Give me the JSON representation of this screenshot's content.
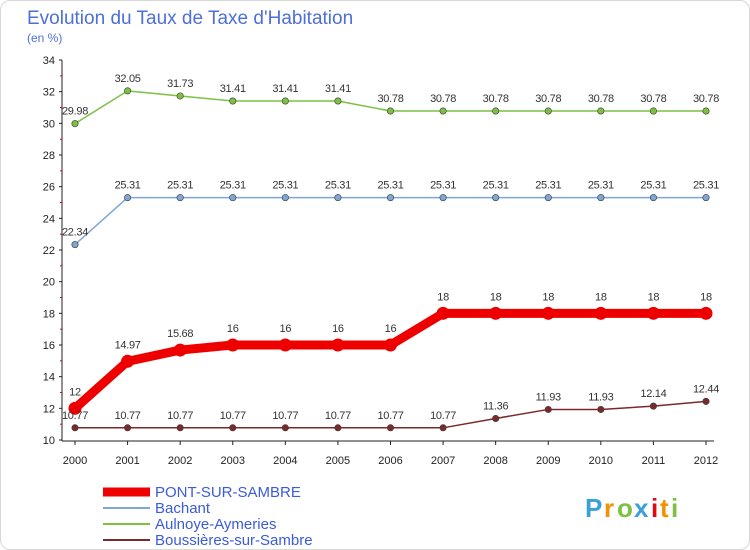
{
  "chart_data": {
    "type": "line",
    "title": "Evolution du Taux de Taxe d'Habitation",
    "subtitle": "(en %)",
    "xlabel": "",
    "ylabel": "",
    "ylim": [
      10,
      34
    ],
    "yticks": [
      "10",
      "12",
      "14",
      "16",
      "18",
      "20",
      "22",
      "24",
      "26",
      "28",
      "30",
      "32",
      "34"
    ],
    "categories": [
      "2000",
      "2001",
      "2002",
      "2003",
      "2004",
      "2005",
      "2006",
      "2007",
      "2008",
      "2009",
      "2010",
      "2011",
      "2012"
    ],
    "series": [
      {
        "name": "Aulnoye-Aymeries",
        "color": "#7cc142",
        "values": [
          29.98,
          32.05,
          31.73,
          31.41,
          31.41,
          31.41,
          30.78,
          30.78,
          30.78,
          30.78,
          30.78,
          30.78,
          30.78
        ],
        "labels": [
          "29.98",
          "32.05",
          "31.73",
          "31.41",
          "31.41",
          "31.41",
          "30.78",
          "30.78",
          "30.78",
          "30.78",
          "30.78",
          "30.78",
          "30.78"
        ]
      },
      {
        "name": "Bachant",
        "color": "#7fa7d3",
        "values": [
          22.34,
          25.31,
          25.31,
          25.31,
          25.31,
          25.31,
          25.31,
          25.31,
          25.31,
          25.31,
          25.31,
          25.31,
          25.31
        ],
        "labels": [
          "22.34",
          "25.31",
          "25.31",
          "25.31",
          "25.31",
          "25.31",
          "25.31",
          "25.31",
          "25.31",
          "25.31",
          "25.31",
          "25.31",
          "25.31"
        ]
      },
      {
        "name": "Boussières-sur-Sambre",
        "color": "#7a2a2a",
        "values": [
          10.77,
          10.77,
          10.77,
          10.77,
          10.77,
          10.77,
          10.77,
          10.77,
          11.36,
          11.93,
          11.93,
          12.14,
          12.44
        ],
        "labels": [
          "10.77",
          "10.77",
          "10.77",
          "10.77",
          "10.77",
          "10.77",
          "10.77",
          "10.77",
          "11.36",
          "11.93",
          "11.93",
          "12.14",
          "12.44"
        ]
      },
      {
        "name": "PONT-SUR-SAMBRE",
        "color": "#ee0000",
        "values": [
          12,
          14.97,
          15.68,
          16,
          16,
          16,
          16,
          18,
          18,
          18,
          18,
          18,
          18
        ],
        "labels": [
          "12",
          "14.97",
          "15.68",
          "16",
          "16",
          "16",
          "16",
          "18",
          "18",
          "18",
          "18",
          "18",
          "18"
        ]
      }
    ],
    "legend": [
      {
        "name": "PONT-SUR-SAMBRE",
        "color": "#ee0000"
      },
      {
        "name": "Bachant",
        "color": "#7fa7d3"
      },
      {
        "name": "Aulnoye-Aymeries",
        "color": "#7cc142"
      },
      {
        "name": "Boussières-sur-Sambre",
        "color": "#7a2a2a"
      }
    ],
    "legend_position": "bottom-left",
    "grid": false
  },
  "logo": {
    "letters": [
      "P",
      "r",
      "o",
      "x",
      "i",
      "t",
      "i"
    ],
    "colors": [
      "#3aa0d8",
      "#f39200",
      "#7cc142",
      "#3aa0d8",
      "#e30613",
      "#f39200",
      "#7cc142"
    ]
  }
}
